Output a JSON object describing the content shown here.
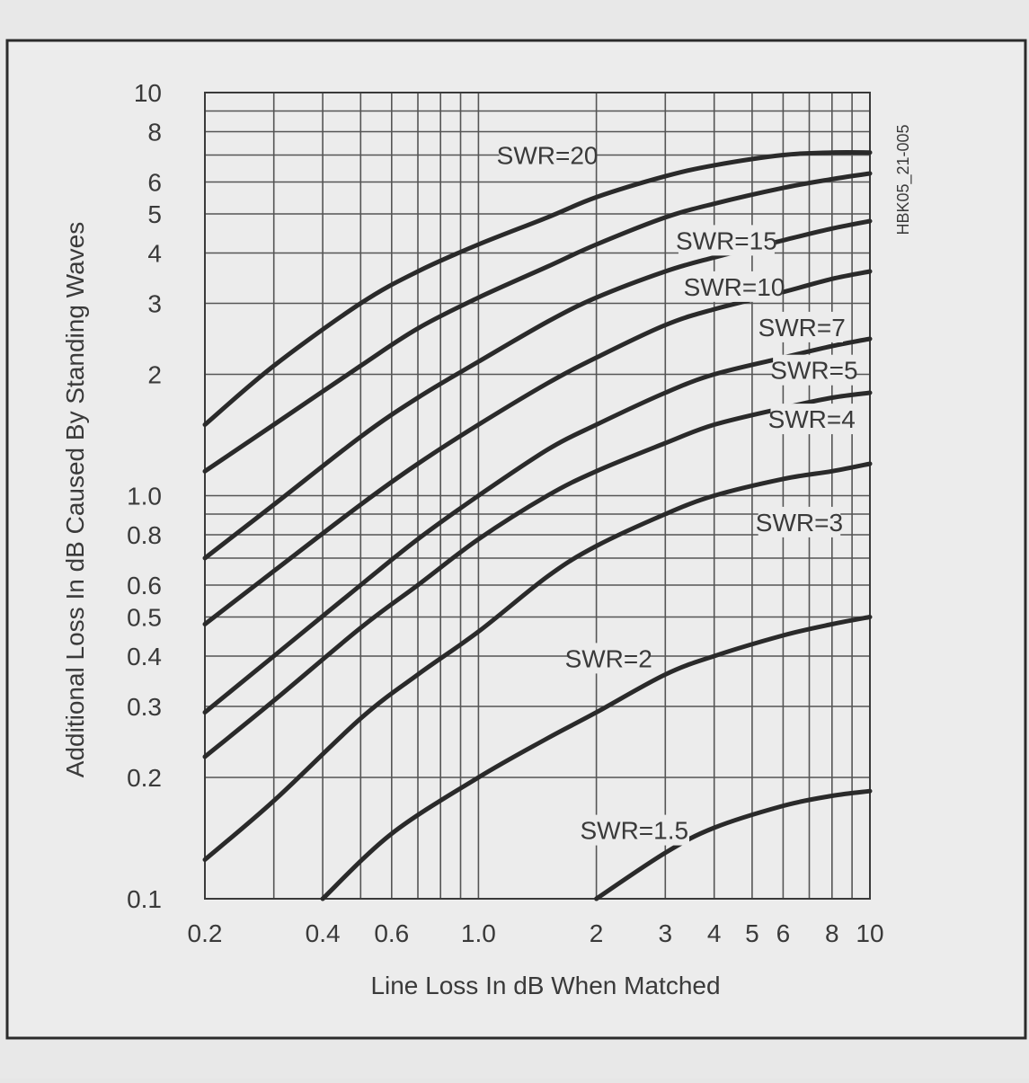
{
  "chart_data": {
    "type": "line",
    "title": "",
    "xlabel": "Line Loss In dB When Matched",
    "ylabel": "Additional Loss In dB Caused By Standing Waves",
    "figure_id": "HBK05_21-005",
    "xscale": "log",
    "yscale": "log",
    "xlim": [
      0.2,
      10
    ],
    "ylim": [
      0.1,
      10
    ],
    "grid": true,
    "x_ticks": [
      {
        "value": 0.2,
        "label": "0.2"
      },
      {
        "value": 0.4,
        "label": "0.4"
      },
      {
        "value": 0.6,
        "label": "0.6"
      },
      {
        "value": 1.0,
        "label": "1.0"
      },
      {
        "value": 2,
        "label": "2"
      },
      {
        "value": 3,
        "label": "3"
      },
      {
        "value": 4,
        "label": "4"
      },
      {
        "value": 5,
        "label": "5"
      },
      {
        "value": 6,
        "label": "6"
      },
      {
        "value": 8,
        "label": "8"
      },
      {
        "value": 10,
        "label": "10"
      }
    ],
    "y_ticks": [
      {
        "value": 0.1,
        "label": "0.1"
      },
      {
        "value": 0.2,
        "label": "0.2"
      },
      {
        "value": 0.3,
        "label": "0.3"
      },
      {
        "value": 0.4,
        "label": "0.4"
      },
      {
        "value": 0.5,
        "label": "0.5"
      },
      {
        "value": 0.6,
        "label": "0.6"
      },
      {
        "value": 0.8,
        "label": "0.8"
      },
      {
        "value": 1.0,
        "label": "1.0"
      },
      {
        "value": 2,
        "label": "2"
      },
      {
        "value": 3,
        "label": "3"
      },
      {
        "value": 4,
        "label": "4"
      },
      {
        "value": 5,
        "label": "5"
      },
      {
        "value": 6,
        "label": "6"
      },
      {
        "value": 8,
        "label": "8"
      },
      {
        "value": 10,
        "label": "10"
      }
    ],
    "series": [
      {
        "name": "SWR=20",
        "label_at": {
          "x": 1.5,
          "y": 7.0
        },
        "points": [
          [
            0.2,
            1.5
          ],
          [
            0.3,
            2.1
          ],
          [
            0.5,
            3.0
          ],
          [
            0.7,
            3.6
          ],
          [
            1.0,
            4.2
          ],
          [
            1.5,
            4.9
          ],
          [
            2,
            5.5
          ],
          [
            3,
            6.2
          ],
          [
            4,
            6.6
          ],
          [
            6,
            7.0
          ],
          [
            8,
            7.1
          ],
          [
            10,
            7.1
          ]
        ]
      },
      {
        "name": "SWR=15",
        "label_at": {
          "x": 4.3,
          "y": 4.3
        },
        "points": [
          [
            0.2,
            1.15
          ],
          [
            0.3,
            1.5
          ],
          [
            0.5,
            2.1
          ],
          [
            0.7,
            2.6
          ],
          [
            1.0,
            3.1
          ],
          [
            1.5,
            3.7
          ],
          [
            2,
            4.2
          ],
          [
            3,
            4.9
          ],
          [
            4,
            5.3
          ],
          [
            6,
            5.8
          ],
          [
            8,
            6.1
          ],
          [
            10,
            6.3
          ]
        ]
      },
      {
        "name": "SWR=10",
        "label_at": {
          "x": 4.5,
          "y": 3.3
        },
        "points": [
          [
            0.2,
            0.7
          ],
          [
            0.3,
            0.95
          ],
          [
            0.5,
            1.4
          ],
          [
            0.7,
            1.75
          ],
          [
            1.0,
            2.15
          ],
          [
            1.5,
            2.7
          ],
          [
            2,
            3.1
          ],
          [
            3,
            3.6
          ],
          [
            4,
            3.9
          ],
          [
            6,
            4.3
          ],
          [
            8,
            4.6
          ],
          [
            10,
            4.8
          ]
        ]
      },
      {
        "name": "SWR=7",
        "label_at": {
          "x": 6.7,
          "y": 2.62
        },
        "points": [
          [
            0.2,
            0.48
          ],
          [
            0.3,
            0.65
          ],
          [
            0.5,
            0.95
          ],
          [
            0.7,
            1.2
          ],
          [
            1.0,
            1.5
          ],
          [
            1.5,
            1.9
          ],
          [
            2,
            2.2
          ],
          [
            3,
            2.65
          ],
          [
            4,
            2.9
          ],
          [
            6,
            3.2
          ],
          [
            8,
            3.45
          ],
          [
            10,
            3.6
          ]
        ]
      },
      {
        "name": "SWR=5",
        "label_at": {
          "x": 7.2,
          "y": 2.05
        },
        "points": [
          [
            0.2,
            0.29
          ],
          [
            0.3,
            0.4
          ],
          [
            0.5,
            0.6
          ],
          [
            0.7,
            0.78
          ],
          [
            1.0,
            1.0
          ],
          [
            1.5,
            1.3
          ],
          [
            2,
            1.5
          ],
          [
            3,
            1.8
          ],
          [
            4,
            2.0
          ],
          [
            6,
            2.2
          ],
          [
            8,
            2.35
          ],
          [
            10,
            2.45
          ]
        ]
      },
      {
        "name": "SWR=4",
        "label_at": {
          "x": 7.1,
          "y": 1.55
        },
        "points": [
          [
            0.2,
            0.225
          ],
          [
            0.3,
            0.31
          ],
          [
            0.5,
            0.47
          ],
          [
            0.7,
            0.6
          ],
          [
            1.0,
            0.78
          ],
          [
            1.5,
            1.0
          ],
          [
            2,
            1.15
          ],
          [
            3,
            1.35
          ],
          [
            4,
            1.5
          ],
          [
            6,
            1.65
          ],
          [
            8,
            1.75
          ],
          [
            10,
            1.8
          ]
        ]
      },
      {
        "name": "SWR=3",
        "label_at": {
          "x": 6.6,
          "y": 0.86
        },
        "points": [
          [
            0.2,
            0.125
          ],
          [
            0.3,
            0.175
          ],
          [
            0.5,
            0.28
          ],
          [
            0.7,
            0.36
          ],
          [
            1.0,
            0.46
          ],
          [
            1.5,
            0.63
          ],
          [
            2,
            0.75
          ],
          [
            3,
            0.9
          ],
          [
            4,
            1.0
          ],
          [
            6,
            1.1
          ],
          [
            8,
            1.15
          ],
          [
            10,
            1.2
          ]
        ]
      },
      {
        "name": "SWR=2",
        "label_at": {
          "x": 2.15,
          "y": 0.395
        },
        "points": [
          [
            0.4,
            0.1
          ],
          [
            0.6,
            0.145
          ],
          [
            1.0,
            0.2
          ],
          [
            1.5,
            0.25
          ],
          [
            2,
            0.29
          ],
          [
            3,
            0.36
          ],
          [
            4,
            0.4
          ],
          [
            6,
            0.45
          ],
          [
            8,
            0.48
          ],
          [
            10,
            0.5
          ]
        ]
      },
      {
        "name": "SWR=1.5",
        "label_at": {
          "x": 2.5,
          "y": 0.148
        },
        "points": [
          [
            2,
            0.1
          ],
          [
            3,
            0.13
          ],
          [
            4,
            0.15
          ],
          [
            6,
            0.17
          ],
          [
            8,
            0.18
          ],
          [
            10,
            0.185
          ]
        ]
      }
    ]
  }
}
